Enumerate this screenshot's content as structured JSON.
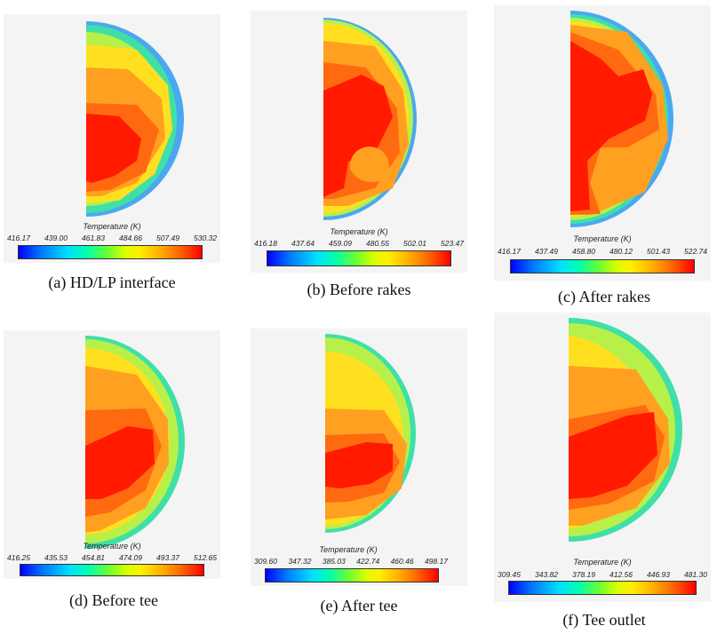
{
  "panels": [
    {
      "caption": "(a) HD/LP interface",
      "colorbar_title": "Temperature (K)",
      "ticks": [
        "416.17",
        "439.00",
        "461.83",
        "484.66",
        "507.49",
        "530.32"
      ]
    },
    {
      "caption": "(b) Before rakes",
      "colorbar_title": "Temperature (K)",
      "ticks": [
        "416.18",
        "437.64",
        "459.09",
        "480.55",
        "502.01",
        "523.47"
      ]
    },
    {
      "caption": "(c) After rakes",
      "colorbar_title": "Temperature (K)",
      "ticks": [
        "416.17",
        "437.49",
        "458.80",
        "480.12",
        "501.43",
        "522.74"
      ]
    },
    {
      "caption": "(d) Before tee",
      "colorbar_title": "Temperature (K)",
      "ticks": [
        "416.25",
        "435.53",
        "454.81",
        "474.09",
        "493.37",
        "512.65"
      ]
    },
    {
      "caption": "(e) After tee",
      "colorbar_title": "Temperature (K)",
      "ticks": [
        "309.60",
        "347.32",
        "385.03",
        "422.74",
        "460.46",
        "498.17"
      ]
    },
    {
      "caption": "(f) Tee outlet",
      "colorbar_title": "Temperature (K)",
      "ticks": [
        "309.45",
        "343.82",
        "378.19",
        "412.56",
        "446.93",
        "481.30"
      ]
    }
  ],
  "colors": {
    "outer_edge": "#4aa8f0",
    "cool_band": "#3fe0a8",
    "light": "#b8f04a",
    "warm": "#ffe020",
    "orange": "#ffa020",
    "hot": "#ff6a10",
    "core": "#ff1a00"
  }
}
